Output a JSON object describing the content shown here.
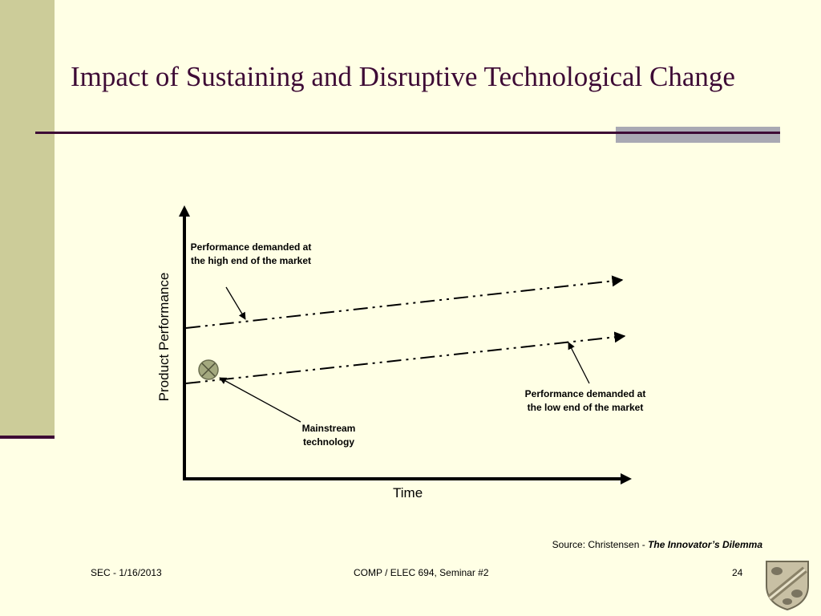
{
  "slide": {
    "title": "Impact of Sustaining and Disruptive Technological Change"
  },
  "diagram": {
    "y_axis_label": "Product Performance",
    "x_axis_label": "Time",
    "high_end_label": "Performance demanded at the high end of the market",
    "low_end_label": "Performance demanded at the low end of the market",
    "mainstream_label": "Mainstream technology"
  },
  "source": {
    "prefix": "Source: Christensen - ",
    "book": "The Innovator’s Dilemma"
  },
  "footer": {
    "left": "SEC - 1/16/2013",
    "center": "COMP / ELEC 694, Seminar #2",
    "page": "24"
  },
  "colors": {
    "background": "#ffffe5",
    "sidebar": "#cccc99",
    "accent": "#3d0a35",
    "marker": "#a4a97f"
  }
}
